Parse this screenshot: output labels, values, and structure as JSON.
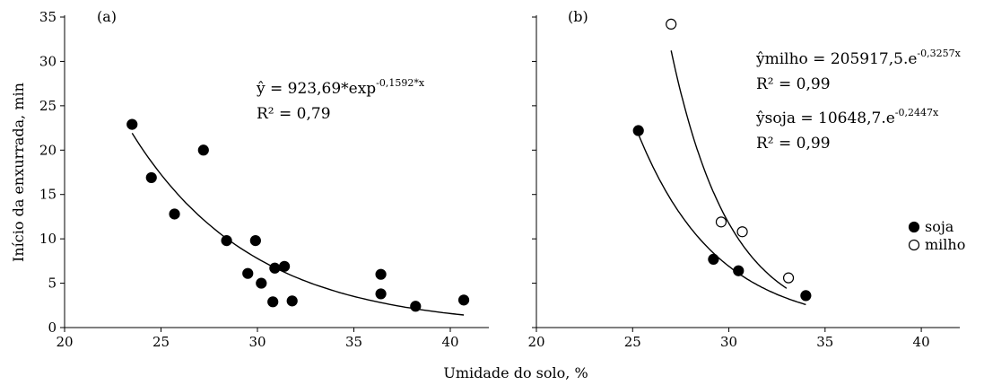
{
  "figure": {
    "xlabel": "Umidade do solo, %",
    "ylabel": "Início da enxurrada, min"
  },
  "chart_data": [
    {
      "type": "scatter",
      "panel": "(a)",
      "xlim": [
        20,
        42
      ],
      "ylim": [
        0,
        35
      ],
      "xticks": [
        "20",
        "25",
        "30",
        "35",
        "40"
      ],
      "yticks": [
        "0",
        "5",
        "10",
        "15",
        "20",
        "25",
        "30",
        "35"
      ],
      "series": [
        {
          "marker": "filled",
          "points": [
            [
              23.5,
              22.9
            ],
            [
              24.5,
              16.9
            ],
            [
              25.7,
              12.8
            ],
            [
              27.2,
              20.0
            ],
            [
              28.4,
              9.8
            ],
            [
              29.5,
              6.1
            ],
            [
              29.9,
              9.8
            ],
            [
              30.2,
              5.0
            ],
            [
              30.8,
              2.9
            ],
            [
              30.9,
              6.7
            ],
            [
              31.4,
              6.9
            ],
            [
              31.8,
              3.0
            ],
            [
              36.4,
              6.0
            ],
            [
              36.4,
              3.8
            ],
            [
              38.2,
              2.4
            ],
            [
              40.7,
              3.1
            ]
          ],
          "fit": {
            "a": 923.69,
            "b": -0.1592,
            "x_from": 23.5,
            "x_to": 40.7
          }
        }
      ],
      "equations": [
        {
          "yhat": "ŷ = 923,69*exp",
          "exponent": "-0,1592*x",
          "r2": "R² = 0,79"
        }
      ]
    },
    {
      "type": "scatter",
      "panel": "(b)",
      "xlim": [
        20,
        42
      ],
      "ylim": [
        0,
        35
      ],
      "xticks": [
        "20",
        "25",
        "30",
        "35",
        "40"
      ],
      "legend_position": "right",
      "series": [
        {
          "name": "soja",
          "marker": "filled",
          "points": [
            [
              25.3,
              22.2
            ],
            [
              29.2,
              7.7
            ],
            [
              30.5,
              6.4
            ],
            [
              34.0,
              3.6
            ]
          ],
          "fit": {
            "a": 10648.7,
            "b": -0.2447,
            "x_from": 25.3,
            "x_to": 34.0
          }
        },
        {
          "name": "milho",
          "marker": "open",
          "points": [
            [
              27.0,
              34.2
            ],
            [
              29.6,
              11.9
            ],
            [
              30.7,
              10.8
            ],
            [
              33.1,
              5.6
            ]
          ],
          "fit": {
            "a": 205917.5,
            "b": -0.3257,
            "x_from": 27.0,
            "x_to": 33.0
          }
        }
      ],
      "equations": [
        {
          "yhat": "ŷmilho = 205917,5.e",
          "exponent": "-0,3257x",
          "r2": "R² = 0,99"
        },
        {
          "yhat": "ŷsoja = 10648,7.e",
          "exponent": "-0,2447x",
          "r2": "R² = 0,99"
        }
      ]
    }
  ]
}
